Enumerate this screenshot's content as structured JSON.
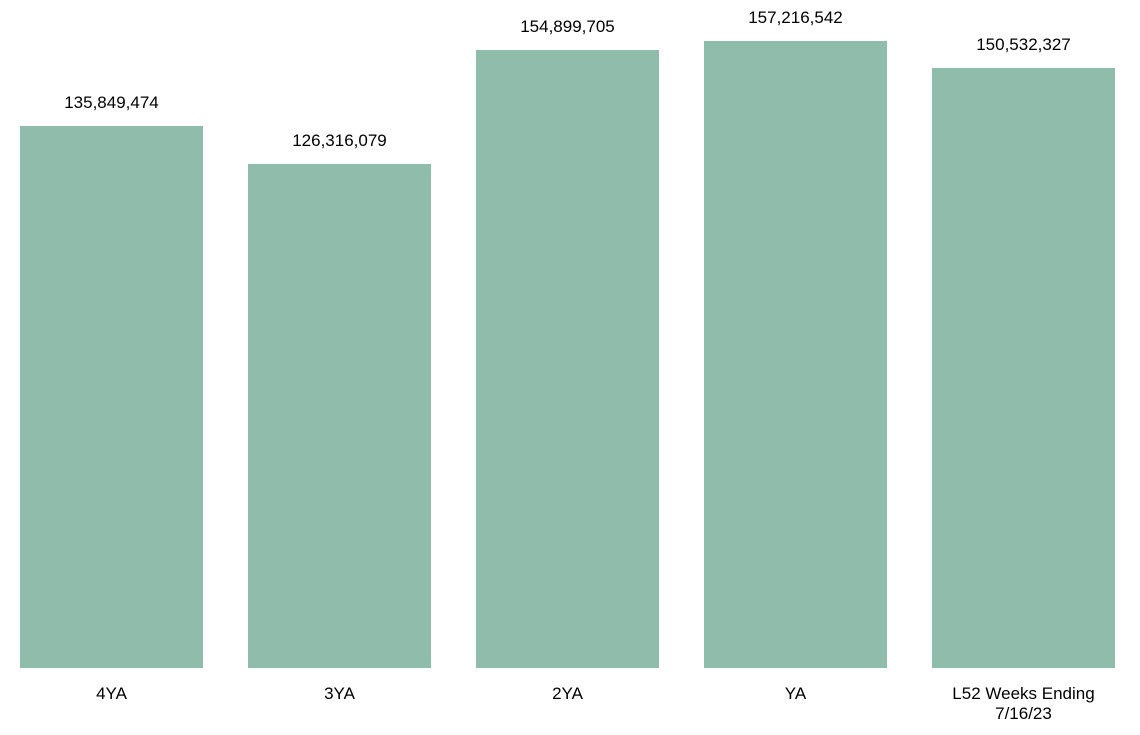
{
  "chart_data": {
    "type": "bar",
    "categories": [
      "4YA",
      "3YA",
      "2YA",
      "YA",
      "L52 Weeks Ending 7/16/23"
    ],
    "values": [
      135849474,
      126316079,
      154899705,
      157216542,
      150532327
    ],
    "value_labels": [
      "135,849,474",
      "126,316,079",
      "154,899,705",
      "157,216,542",
      "150,532,327"
    ],
    "color": "#8fbcab"
  }
}
